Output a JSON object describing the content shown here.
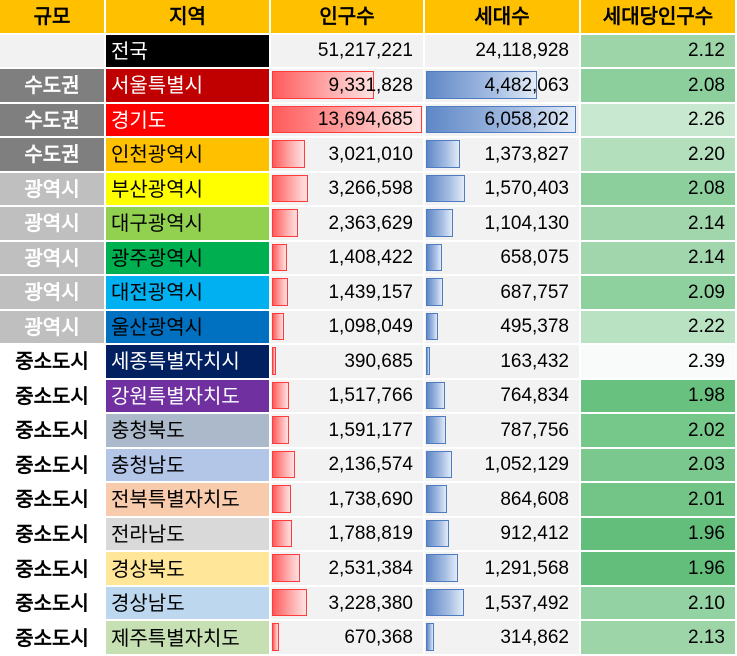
{
  "header": {
    "scale": "규모",
    "region": "지역",
    "population": "인구수",
    "households": "세대수",
    "per_household": "세대당인구수"
  },
  "bar_colors": {
    "population": "#ff5b5b",
    "households": "#5f88c6"
  },
  "rows": [
    {
      "scale": "",
      "scale_type": "blank",
      "region": "전국",
      "region_bg": "#000000",
      "region_fg": "#ffffff",
      "population": "51,217,221",
      "population_value": 51217221,
      "households": "24,118,928",
      "households_value": 24118928,
      "per_household": "2.12",
      "ratio_bg": "#9dd4a8",
      "show_bars": false
    },
    {
      "scale": "수도권",
      "scale_type": "metro-cap",
      "region": "서울특별시",
      "region_bg": "#c00000",
      "region_fg": "#ffffff",
      "population": "9,331,828",
      "population_value": 9331828,
      "households": "4,482,063",
      "households_value": 4482063,
      "per_household": "2.08",
      "ratio_bg": "#8ccf9d",
      "show_bars": true
    },
    {
      "scale": "수도권",
      "scale_type": "metro-cap",
      "region": "경기도",
      "region_bg": "#ff0000",
      "region_fg": "#ffffff",
      "population": "13,694,685",
      "population_value": 13694685,
      "households": "6,058,202",
      "households_value": 6058202,
      "per_household": "2.26",
      "ratio_bg": "#c9e8d0",
      "show_bars": true
    },
    {
      "scale": "수도권",
      "scale_type": "metro-cap",
      "region": "인천광역시",
      "region_bg": "#ffc000",
      "region_fg": "#000000",
      "population": "3,021,010",
      "population_value": 3021010,
      "households": "1,373,827",
      "households_value": 1373827,
      "per_household": "2.20",
      "ratio_bg": "#b3dfbd",
      "show_bars": true
    },
    {
      "scale": "광역시",
      "scale_type": "metro",
      "region": "부산광역시",
      "region_bg": "#ffff00",
      "region_fg": "#000000",
      "population": "3,266,598",
      "population_value": 3266598,
      "households": "1,570,403",
      "households_value": 1570403,
      "per_household": "2.08",
      "ratio_bg": "#8ccf9d",
      "show_bars": true
    },
    {
      "scale": "광역시",
      "scale_type": "metro",
      "region": "대구광역시",
      "region_bg": "#92d050",
      "region_fg": "#000000",
      "population": "2,363,629",
      "population_value": 2363629,
      "households": "1,104,130",
      "households_value": 1104130,
      "per_household": "2.14",
      "ratio_bg": "#a1d6ad",
      "show_bars": true
    },
    {
      "scale": "광역시",
      "scale_type": "metro",
      "region": "광주광역시",
      "region_bg": "#00b050",
      "region_fg": "#000000",
      "population": "1,408,422",
      "population_value": 1408422,
      "households": "658,075",
      "households_value": 658075,
      "per_household": "2.14",
      "ratio_bg": "#a1d6ad",
      "show_bars": true
    },
    {
      "scale": "광역시",
      "scale_type": "metro",
      "region": "대전광역시",
      "region_bg": "#00b0f0",
      "region_fg": "#000000",
      "population": "1,439,157",
      "population_value": 1439157,
      "households": "687,757",
      "households_value": 687757,
      "per_household": "2.09",
      "ratio_bg": "#8fd09f",
      "show_bars": true
    },
    {
      "scale": "광역시",
      "scale_type": "metro",
      "region": "울산광역시",
      "region_bg": "#0070c0",
      "region_fg": "#000000",
      "population": "1,098,049",
      "population_value": 1098049,
      "households": "495,378",
      "households_value": 495378,
      "per_household": "2.22",
      "ratio_bg": "#b9e2c3",
      "show_bars": true
    },
    {
      "scale": "중소도시",
      "scale_type": "city",
      "region": "세종특별자치시",
      "region_bg": "#002060",
      "region_fg": "#ffffff",
      "population": "390,685",
      "population_value": 390685,
      "households": "163,432",
      "households_value": 163432,
      "per_household": "2.39",
      "ratio_bg": "#f8fbf9",
      "show_bars": true
    },
    {
      "scale": "중소도시",
      "scale_type": "city",
      "region": "강원특별자치도",
      "region_bg": "#7030a0",
      "region_fg": "#ffffff",
      "population": "1,517,766",
      "population_value": 1517766,
      "households": "764,834",
      "households_value": 764834,
      "per_household": "1.98",
      "ratio_bg": "#68c17e",
      "show_bars": true
    },
    {
      "scale": "중소도시",
      "scale_type": "city",
      "region": "충청북도",
      "region_bg": "#acb9ca",
      "region_fg": "#000000",
      "population": "1,591,177",
      "population_value": 1591177,
      "households": "787,756",
      "households_value": 787756,
      "per_household": "2.02",
      "ratio_bg": "#76c78a",
      "show_bars": true
    },
    {
      "scale": "중소도시",
      "scale_type": "city",
      "region": "충청남도",
      "region_bg": "#b4c6e7",
      "region_fg": "#000000",
      "population": "2,136,574",
      "population_value": 2136574,
      "households": "1,052,129",
      "households_value": 1052129,
      "per_household": "2.03",
      "ratio_bg": "#7ac88d",
      "show_bars": true
    },
    {
      "scale": "중소도시",
      "scale_type": "city",
      "region": "전북특별자치도",
      "region_bg": "#f8cbad",
      "region_fg": "#000000",
      "population": "1,738,690",
      "population_value": 1738690,
      "households": "864,608",
      "households_value": 864608,
      "per_household": "2.01",
      "ratio_bg": "#73c587",
      "show_bars": true
    },
    {
      "scale": "중소도시",
      "scale_type": "city",
      "region": "전라남도",
      "region_bg": "#d9d9d9",
      "region_fg": "#000000",
      "population": "1,788,819",
      "population_value": 1788819,
      "households": "912,412",
      "households_value": 912412,
      "per_household": "1.96",
      "ratio_bg": "#63be7b",
      "show_bars": true
    },
    {
      "scale": "중소도시",
      "scale_type": "city",
      "region": "경상북도",
      "region_bg": "#ffe699",
      "region_fg": "#000000",
      "population": "2,531,384",
      "population_value": 2531384,
      "households": "1,291,568",
      "households_value": 1291568,
      "per_household": "1.96",
      "ratio_bg": "#63be7b",
      "show_bars": true
    },
    {
      "scale": "중소도시",
      "scale_type": "city",
      "region": "경상남도",
      "region_bg": "#bdd7ee",
      "region_fg": "#000000",
      "population": "3,228,380",
      "population_value": 3228380,
      "households": "1,537,492",
      "households_value": 1537492,
      "per_household": "2.10",
      "ratio_bg": "#93d2a2",
      "show_bars": true
    },
    {
      "scale": "중소도시",
      "scale_type": "city",
      "region": "제주특별자치도",
      "region_bg": "#c6e0b4",
      "region_fg": "#000000",
      "population": "670,368",
      "population_value": 670368,
      "households": "314,862",
      "households_value": 314862,
      "per_household": "2.13",
      "ratio_bg": "#9dd4a8",
      "show_bars": true
    }
  ]
}
